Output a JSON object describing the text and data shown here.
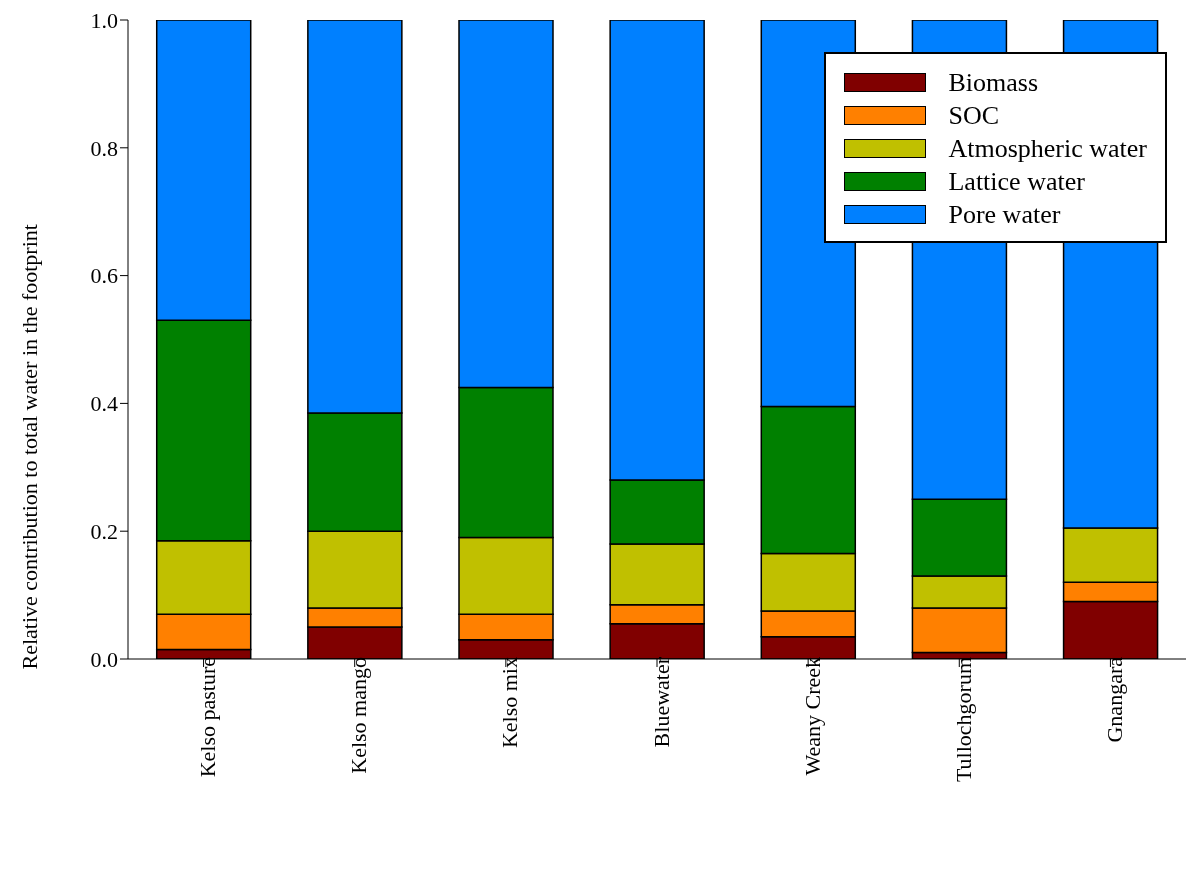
{
  "chart_data": {
    "type": "bar",
    "stacked": true,
    "ylabel": "Relative contribution to total water in the footprint",
    "categories": [
      "Kelso pasture",
      "Kelso mango",
      "Kelso mix",
      "Bluewater",
      "Weany Creek",
      "Tullochgorum",
      "Gnangara"
    ],
    "series": [
      {
        "name": "Biomass",
        "color": "#800000",
        "values": [
          0.015,
          0.05,
          0.03,
          0.055,
          0.035,
          0.01,
          0.09
        ]
      },
      {
        "name": "SOC",
        "color": "#ff8000",
        "values": [
          0.055,
          0.03,
          0.04,
          0.03,
          0.04,
          0.07,
          0.03
        ]
      },
      {
        "name": "Atmospheric water",
        "color": "#c0c000",
        "values": [
          0.115,
          0.12,
          0.12,
          0.095,
          0.09,
          0.05,
          0.085
        ]
      },
      {
        "name": "Lattice water",
        "color": "#008000",
        "values": [
          0.345,
          0.185,
          0.235,
          0.1,
          0.23,
          0.12,
          0
        ]
      },
      {
        "name": "Pore water",
        "color": "#0080ff",
        "values": [
          0.47,
          0.615,
          0.575,
          0.72,
          0.605,
          0.75,
          0.795
        ]
      }
    ],
    "ylim": [
      0,
      1
    ],
    "yticks": [
      {
        "value": 0,
        "label": "0.0"
      },
      {
        "value": 0.2,
        "label": "0.2"
      },
      {
        "value": 0.4,
        "label": "0.4"
      },
      {
        "value": 0.6,
        "label": "0.6"
      },
      {
        "value": 0.8,
        "label": "0.8"
      },
      {
        "value": 1,
        "label": "1.0"
      }
    ],
    "grid": false,
    "legend": "top right"
  }
}
